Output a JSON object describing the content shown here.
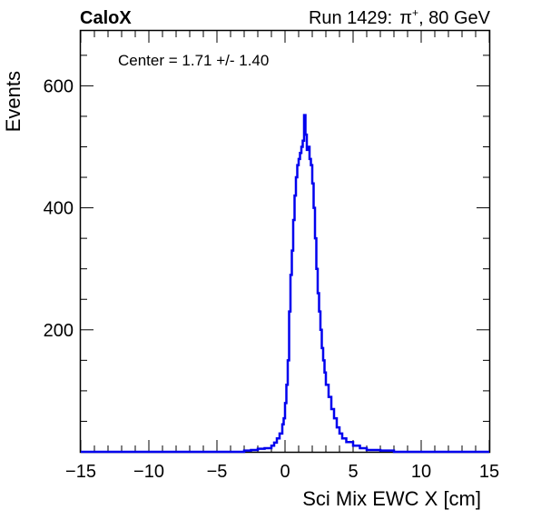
{
  "header": {
    "left": "CaloX",
    "right_prefix": "Run 1429:",
    "particle": "π",
    "particle_sup": "+",
    "right_suffix": ", 80 GeV"
  },
  "chart_data": {
    "type": "histogram",
    "title": "",
    "xlabel": "Sci Mix EWC X [cm]",
    "ylabel": "Events",
    "annotation": "Center = 1.71 +/- 1.40",
    "xlim": [
      -15,
      15
    ],
    "ylim": [
      0,
      690
    ],
    "x_ticks": [
      -15,
      -10,
      -5,
      0,
      5,
      10,
      15
    ],
    "x_tick_labels": [
      "−15",
      "−10",
      "−5",
      "0",
      "5",
      "10",
      "15"
    ],
    "y_ticks": [
      200,
      400,
      600
    ],
    "y_tick_labels": [
      "200",
      "400",
      "600"
    ],
    "x_minor_step": 1,
    "y_minor_step": 50,
    "line_color": "#0000ee",
    "bin_width": 0.1,
    "bins": [
      [
        -15,
        0
      ],
      [
        -3.0,
        2
      ],
      [
        -2.5,
        3
      ],
      [
        -2.0,
        5
      ],
      [
        -1.5,
        6
      ],
      [
        -1.0,
        10
      ],
      [
        -0.8,
        15
      ],
      [
        -0.6,
        22
      ],
      [
        -0.4,
        30
      ],
      [
        -0.2,
        45
      ],
      [
        -0.1,
        55
      ],
      [
        0.0,
        80
      ],
      [
        0.1,
        110
      ],
      [
        0.2,
        150
      ],
      [
        0.3,
        230
      ],
      [
        0.4,
        290
      ],
      [
        0.5,
        330
      ],
      [
        0.6,
        380
      ],
      [
        0.7,
        420
      ],
      [
        0.8,
        450
      ],
      [
        0.9,
        470
      ],
      [
        1.0,
        480
      ],
      [
        1.1,
        490
      ],
      [
        1.2,
        500
      ],
      [
        1.3,
        510
      ],
      [
        1.4,
        552
      ],
      [
        1.5,
        520
      ],
      [
        1.6,
        495
      ],
      [
        1.7,
        500
      ],
      [
        1.8,
        480
      ],
      [
        1.9,
        470
      ],
      [
        2.0,
        440
      ],
      [
        2.1,
        400
      ],
      [
        2.2,
        350
      ],
      [
        2.3,
        300
      ],
      [
        2.4,
        260
      ],
      [
        2.5,
        230
      ],
      [
        2.6,
        200
      ],
      [
        2.7,
        170
      ],
      [
        2.8,
        150
      ],
      [
        2.9,
        130
      ],
      [
        3.0,
        110
      ],
      [
        3.2,
        90
      ],
      [
        3.4,
        70
      ],
      [
        3.6,
        55
      ],
      [
        3.8,
        40
      ],
      [
        4.0,
        30
      ],
      [
        4.2,
        22
      ],
      [
        4.5,
        16
      ],
      [
        5.0,
        10
      ],
      [
        5.5,
        6
      ],
      [
        6.0,
        3
      ],
      [
        7.0,
        2
      ],
      [
        8.0,
        0
      ],
      [
        15,
        0
      ]
    ]
  }
}
